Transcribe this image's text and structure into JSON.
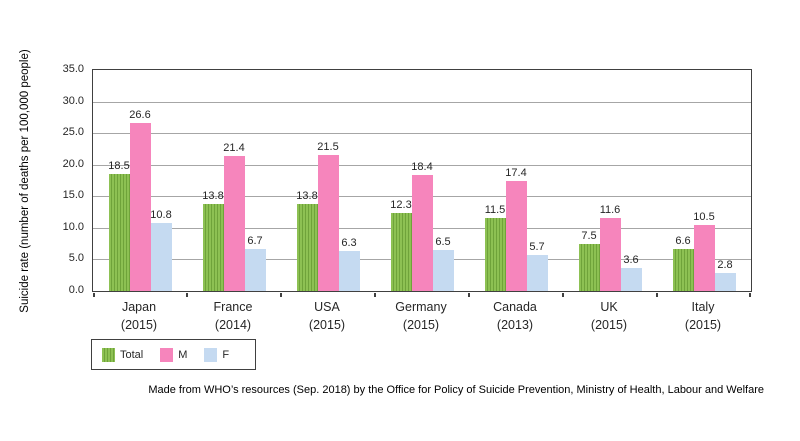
{
  "chart_data": {
    "type": "bar",
    "title": "",
    "ylabel": "Suicide rate (number of deaths per 100,000 people)",
    "xlabel": "",
    "ylim": [
      0,
      35
    ],
    "ytick_step": 5,
    "yticks": [
      "35.0",
      "30.0",
      "25.0",
      "20.0",
      "15.0",
      "10.0",
      "5.0",
      "0.0"
    ],
    "grid": true,
    "legend_position": "bottom-left",
    "categories": [
      {
        "country": "Japan",
        "year": "(2015)"
      },
      {
        "country": "France",
        "year": "(2014)"
      },
      {
        "country": "USA",
        "year": "(2015)"
      },
      {
        "country": "Germany",
        "year": "(2015)"
      },
      {
        "country": "Canada",
        "year": "(2013)"
      },
      {
        "country": "UK",
        "year": "(2015)"
      },
      {
        "country": "Italy",
        "year": "(2015)"
      }
    ],
    "series": [
      {
        "name": "Total",
        "style": "striped",
        "color": "#8dc153",
        "stripe_color": "#6fa33a",
        "values": [
          18.5,
          13.8,
          13.8,
          12.3,
          11.5,
          7.5,
          6.6
        ]
      },
      {
        "name": "M",
        "style": "solid",
        "color": "#f685bc",
        "values": [
          26.6,
          21.4,
          21.5,
          18.4,
          17.4,
          11.6,
          10.5
        ]
      },
      {
        "name": "F",
        "style": "solid",
        "color": "#c5daf1",
        "values": [
          10.8,
          6.7,
          6.3,
          6.5,
          5.7,
          3.6,
          2.8
        ]
      }
    ]
  },
  "colors": {
    "gridline": "#a6a6a6",
    "axis_border": "#404040",
    "label_text": "#262626"
  },
  "footer": {
    "note": "Made from WHO’s resources (Sep. 2018) by the Office for Policy of Suicide Prevention, Ministry of Health, Labour and Welfare"
  }
}
